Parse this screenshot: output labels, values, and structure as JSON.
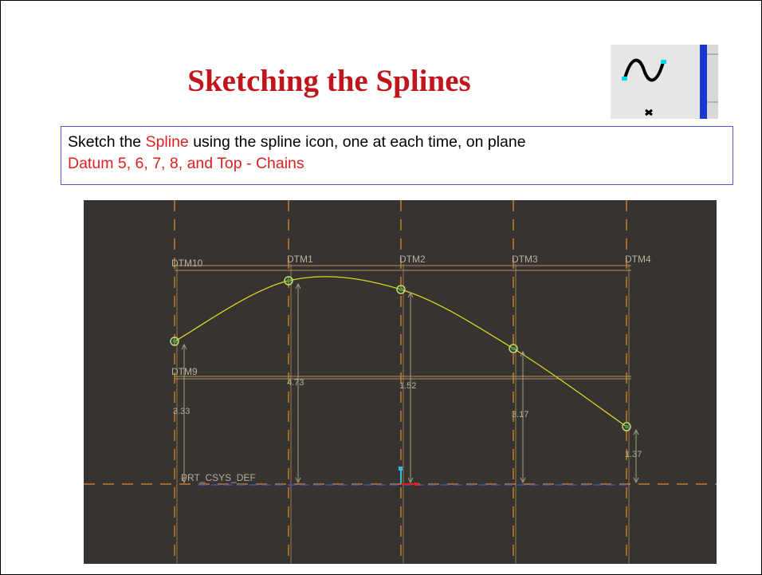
{
  "slide": {
    "title": "Sketching the Splines",
    "instruction": {
      "lines": [
        [
          {
            "text": "Sketch the ",
            "color": "#000000"
          },
          {
            "text": "Spline",
            "color": "#e02020"
          },
          {
            "text": " using the spline icon, one at each time, on plane",
            "color": "#000000"
          }
        ],
        [
          {
            "text": "Datum 5, 6, 7, 8, and Top - Chains",
            "color": "#e02020"
          }
        ]
      ]
    },
    "sketch": {
      "datums": [
        "DTM10",
        "DTM1",
        "DTM2",
        "DTM3",
        "DTM4",
        "DTM9"
      ],
      "csys": "PRT_CSYS_DEF",
      "dimensions": [
        "3.33",
        "4.73",
        "1.52",
        "3.17",
        "1.37"
      ]
    }
  }
}
